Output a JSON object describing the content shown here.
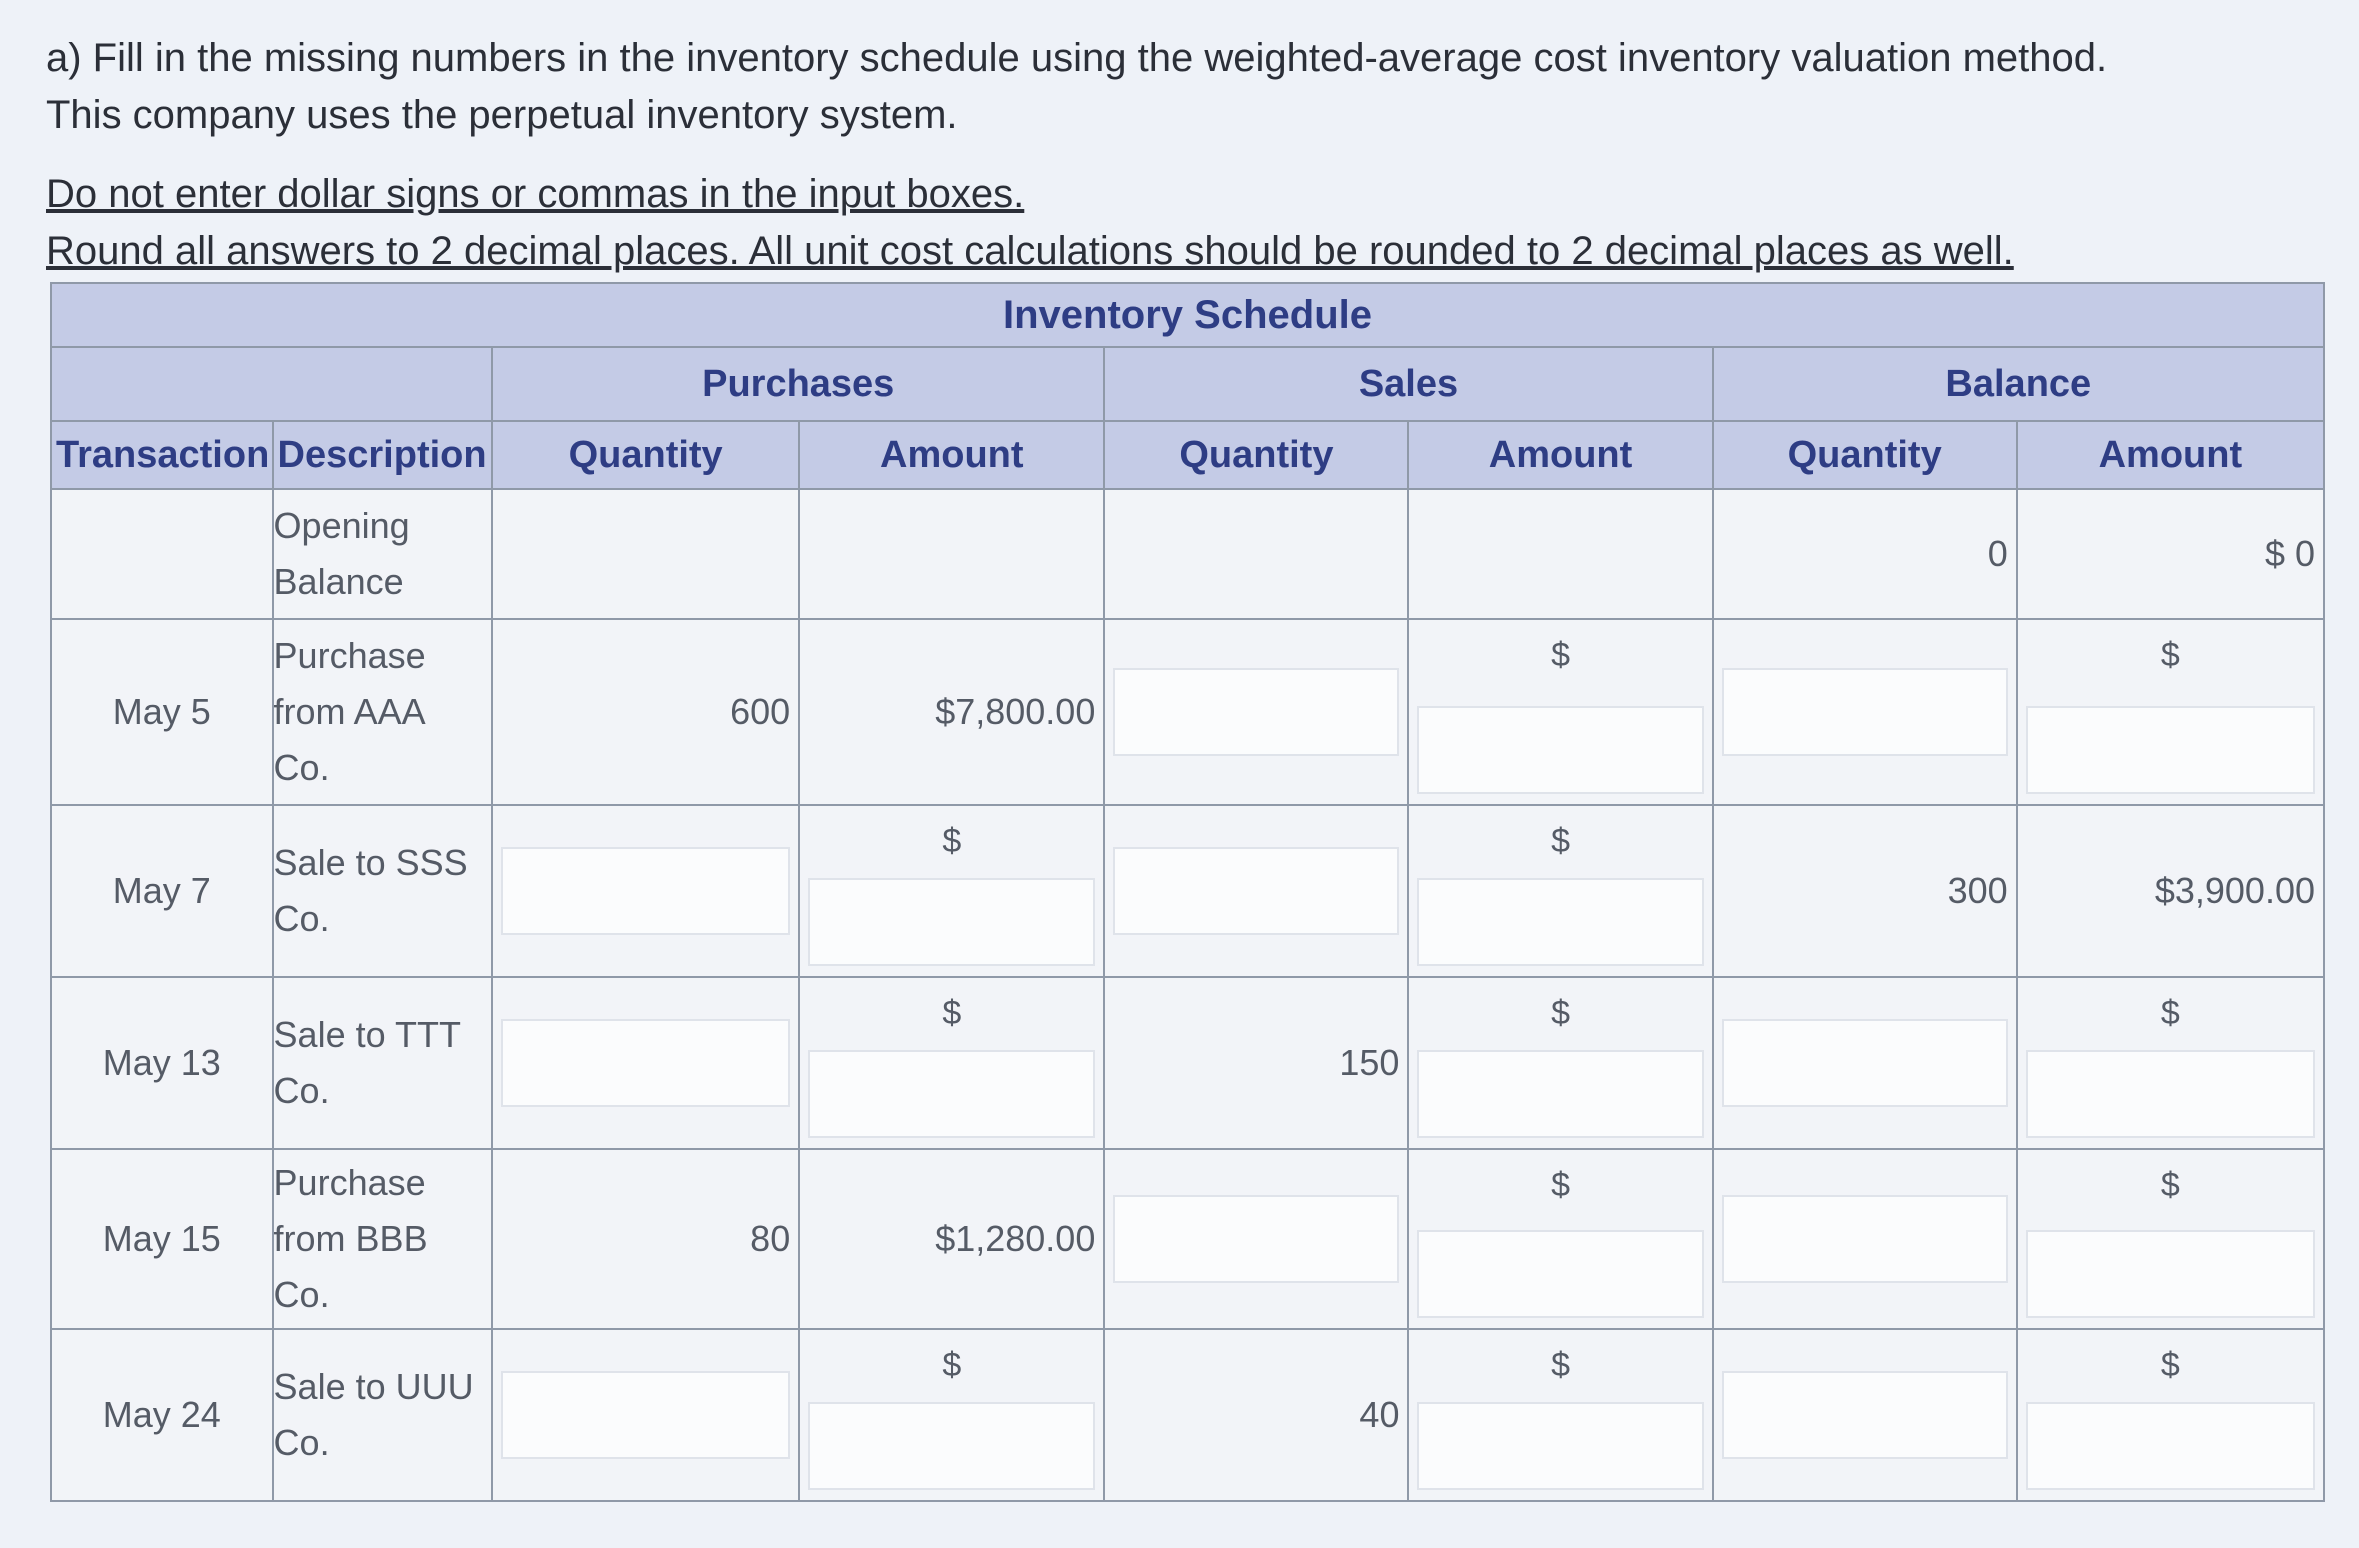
{
  "instructions": {
    "line1": "a) Fill in the missing numbers in the inventory schedule using the weighted-average cost inventory valuation method.",
    "line2": "This company uses the perpetual inventory system.",
    "line3": "Do not enter dollar signs or commas in the input boxes.",
    "line4": "Round all answers to 2 decimal places. All unit cost calculations should be rounded to 2 decimal places as well."
  },
  "schedule": {
    "title": "Inventory Schedule",
    "groups": {
      "purchases": "Purchases",
      "sales": "Sales",
      "balance": "Balance"
    },
    "headers": {
      "transaction": "Transaction",
      "description": "Description",
      "quantity": "Quantity",
      "amount": "Amount"
    },
    "currency_symbol": "$",
    "rows": [
      {
        "date": "",
        "description_lines": [
          "Opening",
          "Balance"
        ],
        "balance_quantity": "0",
        "balance_amount": "$ 0"
      },
      {
        "date": "May 5",
        "description_lines": [
          "Purchase",
          "from AAA",
          "Co."
        ],
        "purchase_quantity": "600",
        "purchase_amount": "$7,800.00"
      },
      {
        "date": "May 7",
        "description_lines": [
          "Sale to SSS",
          "Co."
        ],
        "balance_quantity": "300",
        "balance_amount": "$3,900.00"
      },
      {
        "date": "May 13",
        "description_lines": [
          "Sale to TTT",
          "Co."
        ],
        "sales_quantity": "150"
      },
      {
        "date": "May 15",
        "description_lines": [
          "Purchase",
          "from BBB",
          "Co."
        ],
        "purchase_quantity": "80",
        "purchase_amount": "$1,280.00"
      },
      {
        "date": "May 24",
        "description_lines": [
          "Sale to UUU",
          "Co."
        ],
        "sales_quantity": "40"
      }
    ]
  }
}
